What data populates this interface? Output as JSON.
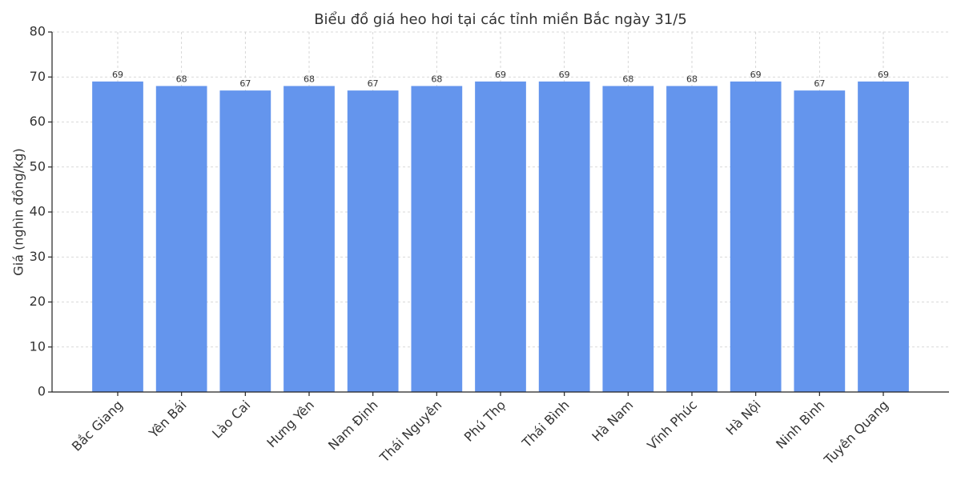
{
  "chart_data": {
    "type": "bar",
    "title": "Biểu đồ giá heo hơi tại các tỉnh miền Bắc ngày 31/5",
    "y_label": "Giá (nghìn đồng/kg)",
    "categories": [
      "Bắc Giang",
      "Yên Bái",
      "Lào Cai",
      "Hưng Yên",
      "Nam Định",
      "Thái Nguyên",
      "Phú Thọ",
      "Thái Bình",
      "Hà Nam",
      "Vĩnh Phúc",
      "Hà Nội",
      "Ninh Bình",
      "Tuyên Quang"
    ],
    "values": [
      69,
      68,
      67,
      68,
      67,
      68,
      69,
      69,
      68,
      68,
      69,
      67,
      69
    ],
    "color": "#6495ed",
    "ylim": [
      0,
      80
    ],
    "yticks": [
      0,
      10,
      20,
      30,
      40,
      50,
      60,
      70,
      80
    ],
    "grid": true
  }
}
